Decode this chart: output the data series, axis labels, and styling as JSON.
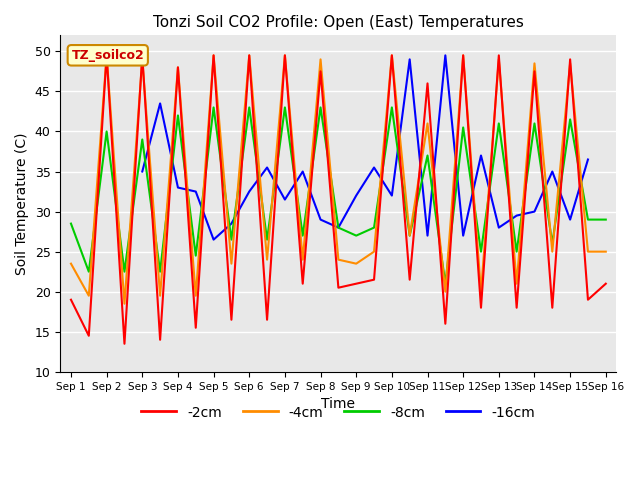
{
  "title": "Tonzi Soil CO2 Profile: Open (East) Temperatures",
  "xlabel": "Time",
  "ylabel": "Soil Temperature (C)",
  "bg_color": "#e8e8e8",
  "grid_color": "white",
  "legend_label": "TZ_soilco2",
  "xtick_labels": [
    "Sep 1",
    "Sep 2",
    "Sep 3",
    "Sep 4",
    "Sep 5",
    "Sep 6",
    "Sep 7",
    "Sep 8",
    "Sep 9",
    "Sep 10",
    "Sep 11",
    "Sep 12",
    "Sep 13",
    "Sep 14",
    "Sep 15",
    "Sep 16"
  ],
  "series": {
    "2cm": {
      "color": "#ff0000",
      "label": "-2cm",
      "x": [
        0,
        0.5,
        1.0,
        1.5,
        2.0,
        2.5,
        3.0,
        3.5,
        4.0,
        4.5,
        5.0,
        5.5,
        6.0,
        6.5,
        7.0,
        7.5,
        8.0,
        8.5,
        9.0,
        9.5,
        10.0,
        10.5,
        11.0,
        11.5,
        12.0,
        12.5,
        13.0,
        13.5,
        14.0,
        14.5,
        15.0
      ],
      "y": [
        19,
        14.5,
        49.5,
        13.5,
        49.5,
        14.0,
        48.0,
        15.5,
        49.5,
        16.5,
        49.5,
        16.5,
        49.5,
        21.0,
        47.5,
        20.5,
        21.0,
        21.5,
        49.5,
        21.5,
        46.0,
        16.0,
        49.5,
        18.0,
        49.5,
        18.0,
        47.5,
        18.0,
        49.0,
        19.0,
        21.0
      ]
    },
    "4cm": {
      "color": "#ff8c00",
      "label": "-4cm",
      "x": [
        0,
        0.5,
        1.0,
        1.5,
        2.0,
        2.5,
        3.0,
        3.5,
        4.0,
        4.5,
        5.0,
        5.5,
        6.0,
        6.5,
        7.0,
        7.5,
        8.0,
        8.5,
        9.0,
        9.5,
        10.0,
        10.5,
        11.0,
        11.5,
        12.0,
        12.5,
        13.0,
        13.5,
        14.0,
        14.5,
        15.0
      ],
      "y": [
        23.5,
        19.5,
        49.5,
        18.5,
        49.0,
        19.5,
        48.0,
        19.5,
        49.5,
        23.5,
        49.5,
        24.0,
        49.5,
        24.0,
        49.0,
        24.0,
        23.5,
        25.0,
        49.5,
        27.0,
        41.0,
        20.0,
        49.5,
        20.0,
        49.0,
        21.0,
        48.5,
        25.0,
        48.5,
        25.0,
        25.0
      ]
    },
    "8cm": {
      "color": "#00cc00",
      "label": "-8cm",
      "x": [
        0,
        0.5,
        1.0,
        1.5,
        2.0,
        2.5,
        3.0,
        3.5,
        4.0,
        4.5,
        5.0,
        5.5,
        6.0,
        6.5,
        7.0,
        7.5,
        8.0,
        8.5,
        9.0,
        9.5,
        10.0,
        10.5,
        11.0,
        11.5,
        12.0,
        12.5,
        13.0,
        13.5,
        14.0,
        14.5,
        15.0
      ],
      "y": [
        28.5,
        22.5,
        40.0,
        22.5,
        39.0,
        22.5,
        42.0,
        24.5,
        43.0,
        26.5,
        43.0,
        26.5,
        43.0,
        27.0,
        43.0,
        28.0,
        27.0,
        28.0,
        43.0,
        27.0,
        37.0,
        21.0,
        40.5,
        25.0,
        41.0,
        25.0,
        41.0,
        26.0,
        41.5,
        29.0,
        29.0
      ]
    },
    "16cm": {
      "color": "#0000ff",
      "label": "-16cm",
      "x": [
        2.0,
        2.5,
        3.0,
        3.5,
        4.0,
        4.5,
        5.0,
        5.5,
        6.0,
        6.5,
        7.0,
        7.5,
        8.0,
        8.5,
        9.0,
        9.5,
        10.0,
        10.5,
        11.0,
        11.5,
        12.0,
        12.5,
        13.0,
        13.5,
        14.0,
        14.5
      ],
      "y": [
        35.0,
        43.5,
        33.0,
        32.5,
        26.5,
        28.5,
        32.5,
        35.5,
        31.5,
        35.0,
        29.0,
        28.0,
        32.0,
        35.5,
        32.0,
        49.0,
        27.0,
        49.5,
        27.0,
        37.0,
        28.0,
        29.5,
        30.0,
        35.0,
        29.0,
        36.5
      ]
    }
  }
}
